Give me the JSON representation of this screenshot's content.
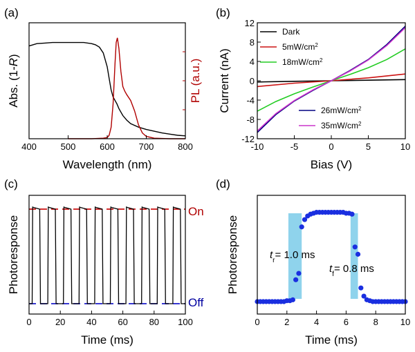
{
  "chart_data": [
    {
      "panel": "(a)",
      "type": "line",
      "xlabel": "Wavelength (nm)",
      "ylabel_prefix": "Abs. (1-",
      "ylabel_italic": "R",
      "ylabel_suffix": ")",
      "ylabel_right": "PL (a.u.)",
      "xlim": [
        400,
        800
      ],
      "xticks": [
        "400",
        "500",
        "600",
        "700",
        "800"
      ],
      "ylim": [
        0,
        1
      ],
      "series": [
        {
          "name": "Abs",
          "color": "#000000",
          "x": [
            400,
            410,
            420,
            440,
            460,
            480,
            500,
            520,
            540,
            560,
            570,
            580,
            590,
            600,
            605,
            610,
            615,
            620,
            625,
            630,
            640,
            650,
            660,
            680,
            700,
            720,
            740,
            760,
            780,
            800
          ],
          "y": [
            0.8,
            0.81,
            0.82,
            0.825,
            0.83,
            0.83,
            0.83,
            0.83,
            0.83,
            0.82,
            0.81,
            0.79,
            0.74,
            0.62,
            0.52,
            0.42,
            0.36,
            0.33,
            0.3,
            0.26,
            0.2,
            0.16,
            0.13,
            0.1,
            0.08,
            0.065,
            0.05,
            0.04,
            0.03,
            0.025
          ]
        },
        {
          "name": "PL",
          "color": "#b00000",
          "x": [
            500,
            560,
            590,
            600,
            605,
            610,
            615,
            620,
            623,
            626,
            630,
            635,
            640,
            645,
            650,
            660,
            670,
            680,
            690,
            700,
            720,
            760,
            800
          ],
          "y": [
            0.0,
            0.0,
            0.005,
            0.01,
            0.03,
            0.1,
            0.3,
            0.65,
            0.83,
            0.87,
            0.78,
            0.58,
            0.45,
            0.41,
            0.38,
            0.33,
            0.24,
            0.12,
            0.05,
            0.02,
            0.005,
            0.0,
            0.0
          ]
        }
      ]
    },
    {
      "panel": "(b)",
      "type": "line",
      "xlabel": "Bias (V)",
      "ylabel": "Current (nA)",
      "xlim": [
        -10,
        10
      ],
      "ylim": [
        -12,
        12
      ],
      "xticks": [
        "-10",
        "-5",
        "0",
        "5",
        "10"
      ],
      "yticks": [
        "-12",
        "-8",
        "-4",
        "0",
        "4",
        "8",
        "12"
      ],
      "legend_top": [
        "Dark",
        "5mW/cm",
        "18mW/cm"
      ],
      "legend_bottom": [
        "26mW/cm",
        "35mW/cm"
      ],
      "legend_superscript": "2",
      "series": [
        {
          "name": "Dark",
          "color": "#000000",
          "x": [
            -10,
            -5,
            0,
            5,
            10
          ],
          "y": [
            -0.25,
            -0.12,
            0,
            0.12,
            0.25
          ]
        },
        {
          "name": "5mW/cm2",
          "color": "#cc1111",
          "x": [
            -10,
            -5,
            0,
            5,
            10
          ],
          "y": [
            -1.2,
            -0.5,
            0,
            0.6,
            1.4
          ]
        },
        {
          "name": "18mW/cm2",
          "color": "#22cc22",
          "x": [
            -10,
            -7.5,
            -5,
            -2.5,
            0,
            2.5,
            5,
            7.5,
            10
          ],
          "y": [
            -6.3,
            -4.3,
            -2.7,
            -1.3,
            0,
            1.3,
            2.7,
            4.4,
            6.6
          ]
        },
        {
          "name": "26mW/cm2",
          "color": "#000080",
          "x": [
            -10,
            -7.5,
            -5,
            -2.5,
            0,
            2.5,
            5,
            7.5,
            10
          ],
          "y": [
            -10.7,
            -7.0,
            -4.2,
            -2.0,
            0,
            2.1,
            4.4,
            7.5,
            11.3
          ]
        },
        {
          "name": "35mW/cm2",
          "color": "#cc33cc",
          "x": [
            -10,
            -7.5,
            -5,
            -2.5,
            0,
            2.5,
            5,
            7.5,
            10
          ],
          "y": [
            -10.4,
            -6.8,
            -4.1,
            -1.9,
            0,
            2.0,
            4.3,
            7.3,
            11.0
          ]
        }
      ]
    },
    {
      "panel": "(c)",
      "type": "line",
      "xlabel": "Time (ms)",
      "ylabel": "Photoresponse",
      "xlim": [
        0,
        100
      ],
      "xticks": [
        "0",
        "20",
        "40",
        "60",
        "80",
        "100"
      ],
      "label_on": "On",
      "label_off": "Off",
      "period_ms": 10,
      "on_width_ms": 5,
      "cycles": 10,
      "on_level": 0.92,
      "off_level": 0.0
    },
    {
      "panel": "(d)",
      "type": "scatter",
      "xlabel": "Time (ms)",
      "ylabel": "Photoresponse",
      "xlim": [
        0,
        10
      ],
      "xticks": [
        "0",
        "2",
        "4",
        "6",
        "8",
        "10"
      ],
      "rise_label": "t",
      "rise_sub": "r",
      "rise_value": "= 1.0 ms",
      "fall_label": "t",
      "fall_sub": "f",
      "fall_value": "= 0.8 ms",
      "rise_band": [
        2.1,
        3.0
      ],
      "fall_band": [
        6.3,
        6.8
      ],
      "points": {
        "x": [
          0.0,
          0.2,
          0.4,
          0.6,
          0.8,
          1.0,
          1.2,
          1.4,
          1.6,
          1.8,
          2.0,
          2.2,
          2.4,
          2.6,
          2.8,
          3.0,
          3.2,
          3.4,
          3.6,
          3.8,
          4.0,
          4.2,
          4.4,
          4.6,
          4.8,
          5.0,
          5.2,
          5.4,
          5.6,
          5.8,
          6.0,
          6.2,
          6.4,
          6.6,
          6.8,
          7.0,
          7.2,
          7.4,
          7.6,
          7.8,
          8.0,
          8.2,
          8.4,
          8.6,
          8.8,
          9.0,
          9.2,
          9.4,
          9.6,
          9.8,
          10.0
        ],
        "y": [
          0.0,
          0.0,
          0.0,
          0.0,
          0.0,
          0.0,
          0.0,
          0.0,
          0.0,
          0.0,
          0.01,
          0.01,
          0.02,
          0.24,
          0.31,
          0.82,
          0.9,
          0.94,
          0.96,
          0.97,
          0.98,
          0.98,
          0.98,
          0.98,
          0.98,
          0.98,
          0.98,
          0.98,
          0.98,
          0.98,
          0.97,
          0.97,
          0.96,
          0.6,
          0.52,
          0.15,
          0.06,
          0.02,
          0.01,
          0.0,
          0.0,
          0.0,
          0.0,
          0.0,
          0.0,
          0.0,
          0.0,
          0.0,
          0.0,
          0.0,
          0.0
        ]
      }
    }
  ]
}
